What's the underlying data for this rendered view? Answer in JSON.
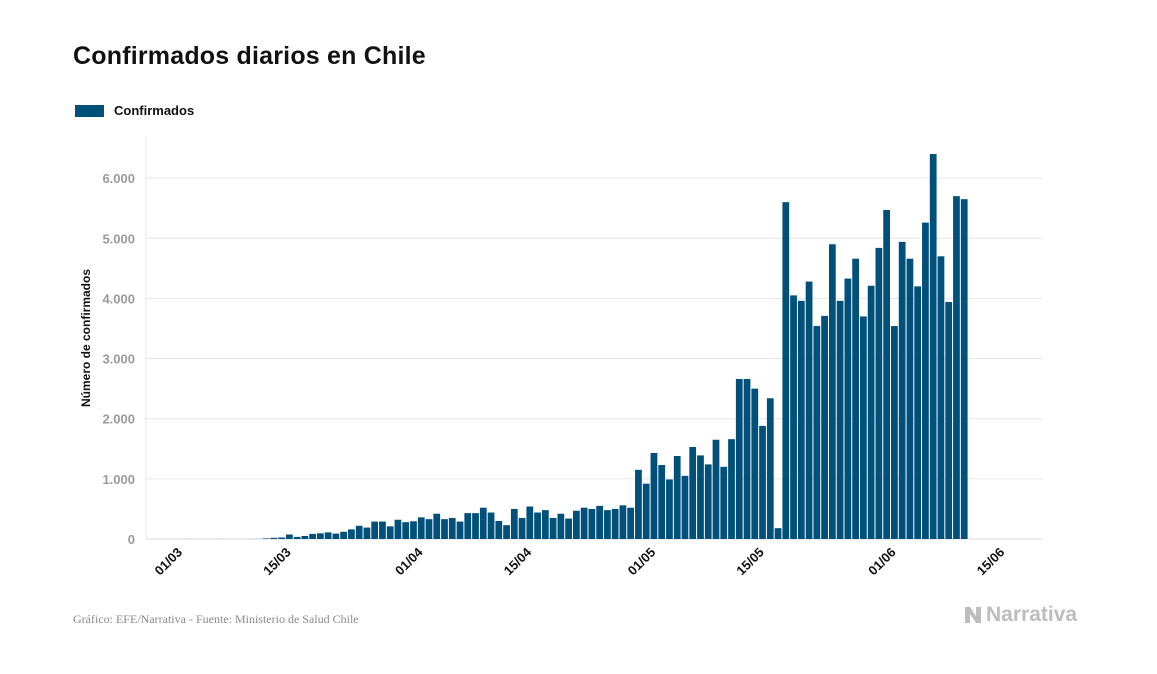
{
  "title": "Confirmados diarios en Chile",
  "source": "Gráfico: EFE/Narrativa - Fuente: Ministerio de Salud Chile",
  "brand": "Narrativa",
  "colors": {
    "bar": "#00507a",
    "grid": "#e6e6e6",
    "tick": "#9a9a9a",
    "text": "#111111"
  },
  "chart_data": {
    "type": "bar",
    "title": "Confirmados diarios en Chile",
    "xlabel": "",
    "ylabel": "Número de confirmados",
    "ylim": [
      0,
      6700
    ],
    "yticks": [
      0,
      1000,
      2000,
      3000,
      4000,
      5000,
      6000
    ],
    "ytick_labels": [
      "0",
      "1.000",
      "2.000",
      "3.000",
      "4.000",
      "5.000",
      "6.000"
    ],
    "xtick_labels": [
      "01/03",
      "15/03",
      "01/04",
      "15/04",
      "01/05",
      "15/05",
      "01/06",
      "15/06"
    ],
    "xtick_day_index": [
      0,
      14,
      31,
      45,
      61,
      75,
      92,
      106
    ],
    "start_date": "01/03",
    "legend": [
      {
        "name": "Confirmados",
        "color": "#00507a"
      }
    ],
    "grid": true,
    "series": [
      {
        "name": "Confirmados",
        "values": [
          0,
          0,
          1,
          0,
          0,
          0,
          1,
          0,
          0,
          0,
          1,
          2,
          10,
          20,
          25,
          75,
          35,
          50,
          85,
          95,
          110,
          90,
          120,
          160,
          220,
          190,
          290,
          290,
          210,
          320,
          280,
          295,
          360,
          330,
          420,
          330,
          350,
          290,
          430,
          430,
          520,
          440,
          300,
          230,
          500,
          350,
          540,
          440,
          480,
          350,
          420,
          340,
          470,
          520,
          500,
          550,
          480,
          500,
          560,
          520,
          1150,
          920,
          1430,
          1230,
          990,
          1380,
          1050,
          1530,
          1390,
          1240,
          1650,
          1200,
          1660,
          2660,
          2660,
          2500,
          1880,
          2340,
          180,
          5600,
          4050,
          3960,
          4280,
          3540,
          3710,
          4900,
          3960,
          4330,
          4660,
          3700,
          4210,
          4840,
          5470,
          3540,
          4940,
          4660,
          4200,
          5260,
          6400,
          4700,
          3940,
          5700,
          5650
        ]
      }
    ]
  }
}
